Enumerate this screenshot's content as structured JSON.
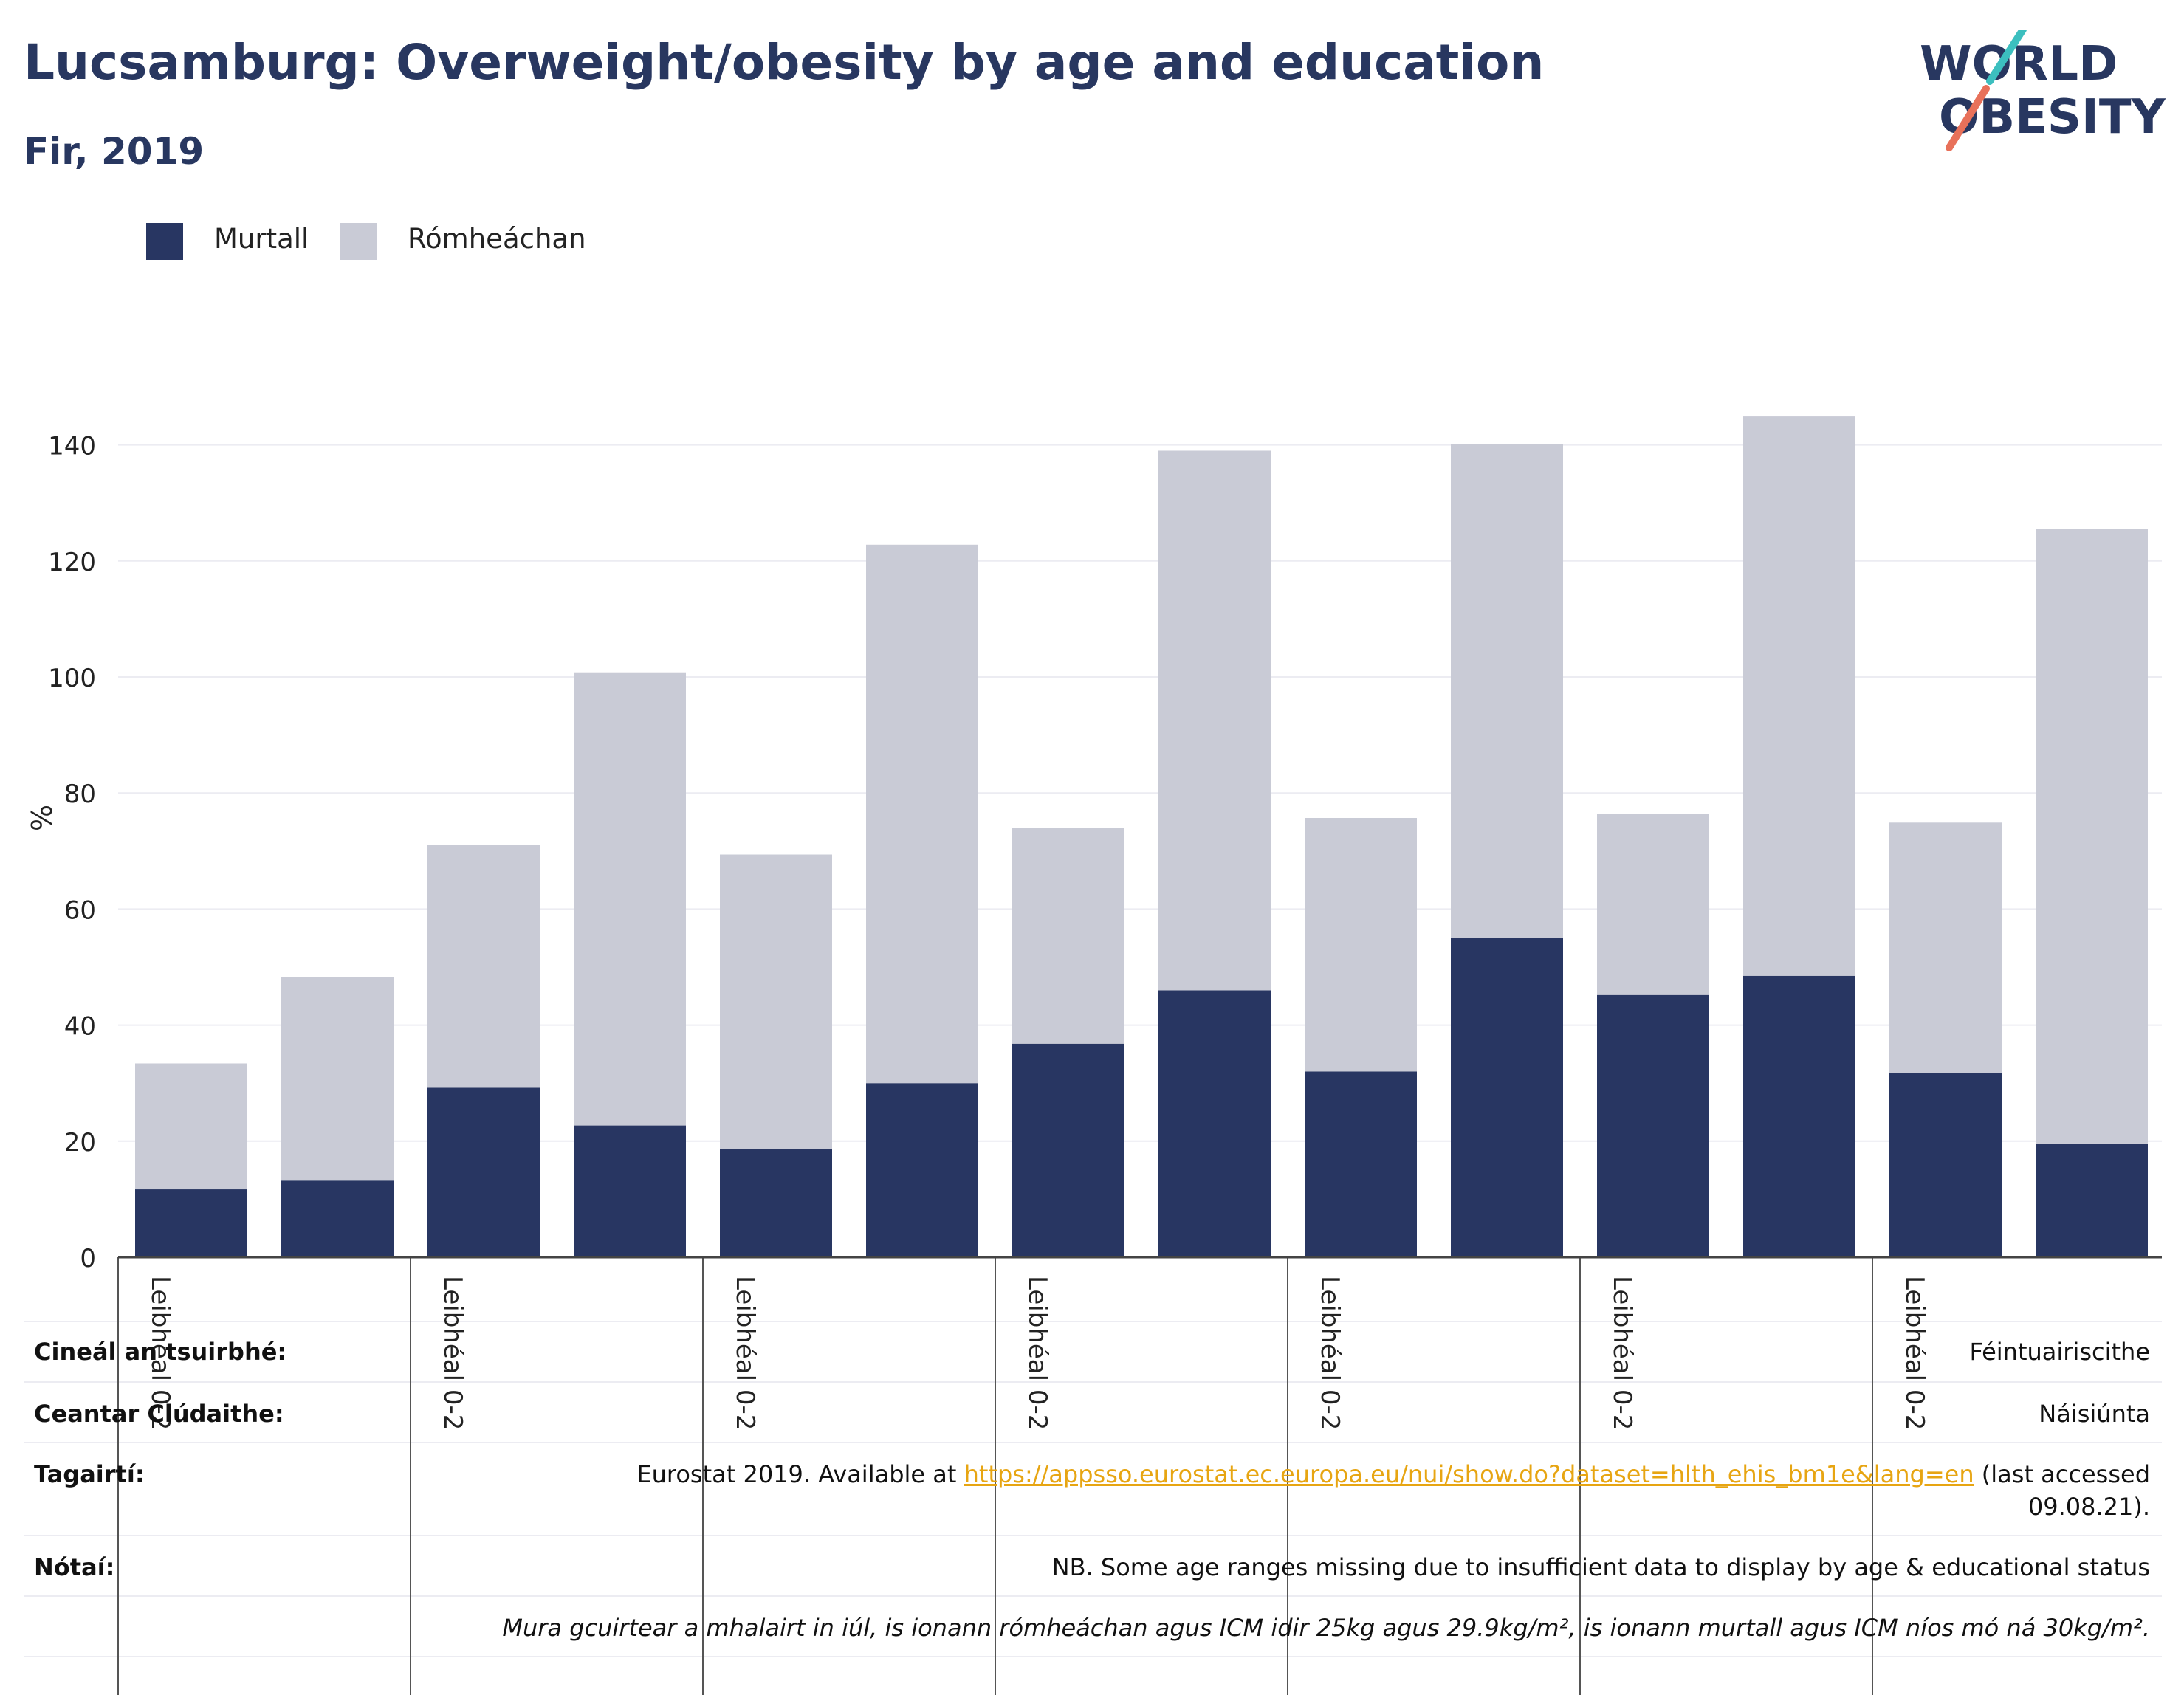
{
  "header": {
    "title": "Lucsamburg: Overweight/obesity by age and education",
    "subtitle": "Fir, 2019"
  },
  "logo": {
    "line1": "WORLD",
    "line2": "OBESITY"
  },
  "colors": {
    "obese": "#283662",
    "overweight": "#c9cbd6",
    "title": "#283760",
    "link": "#e7a512",
    "grid": "#ececf2"
  },
  "chart_data": {
    "type": "bar",
    "stacked": true,
    "ylabel": "%",
    "ylim": [
      0,
      150
    ],
    "yticks": [
      0,
      20,
      40,
      60,
      80,
      100,
      120,
      140
    ],
    "grid": true,
    "legend_position": "top-left",
    "categories": [
      "Leibhéal 0-2",
      "",
      "Leibhéal 0-2",
      "",
      "Leibhéal 0-2",
      "",
      "Leibhéal 0-2",
      "",
      "Leibhéal 0-2",
      "",
      "Leibhéal 0-2",
      "",
      "Leibhéal 0-2",
      ""
    ],
    "series": [
      {
        "name": "Murtall",
        "color": "#283662",
        "values": [
          11.7,
          13.2,
          29.2,
          22.7,
          18.6,
          30.0,
          36.8,
          46.0,
          32.0,
          55.0,
          45.2,
          48.5,
          31.8,
          19.6
        ]
      },
      {
        "name": "Rómheáchan",
        "color": "#c9cbd6",
        "values": [
          21.7,
          35.1,
          41.8,
          78.1,
          50.8,
          92.8,
          37.2,
          93.0,
          43.7,
          85.1,
          31.2,
          96.4,
          43.1,
          105.9
        ]
      }
    ]
  },
  "info": {
    "survey_type_label": "Cineál an tsuirbhé:",
    "survey_type_value": "Féintuairiscithe",
    "coverage_label": "Ceantar Clúdaithe:",
    "coverage_value": "Náisiúnta",
    "references_label": "Tagairtí:",
    "references_prefix": "Eurostat 2019. Available at ",
    "references_link": "https://appsso.eurostat.ec.europa.eu/nui/show.do?dataset=hlth_ehis_bm1e&lang=en",
    "references_suffix": " (last accessed",
    "references_date": "09.08.21).",
    "notes_label": "Nótaí:",
    "notes_value": "NB. Some age ranges missing due to insufficient data to display by age & educational status",
    "definition": "Mura gcuirtear a mhalairt in iúl, is ionann rómheáchan agus ICM idir 25kg agus 29.9kg/m², is ionann murtall agus ICM níos mó ná 30kg/m²."
  }
}
